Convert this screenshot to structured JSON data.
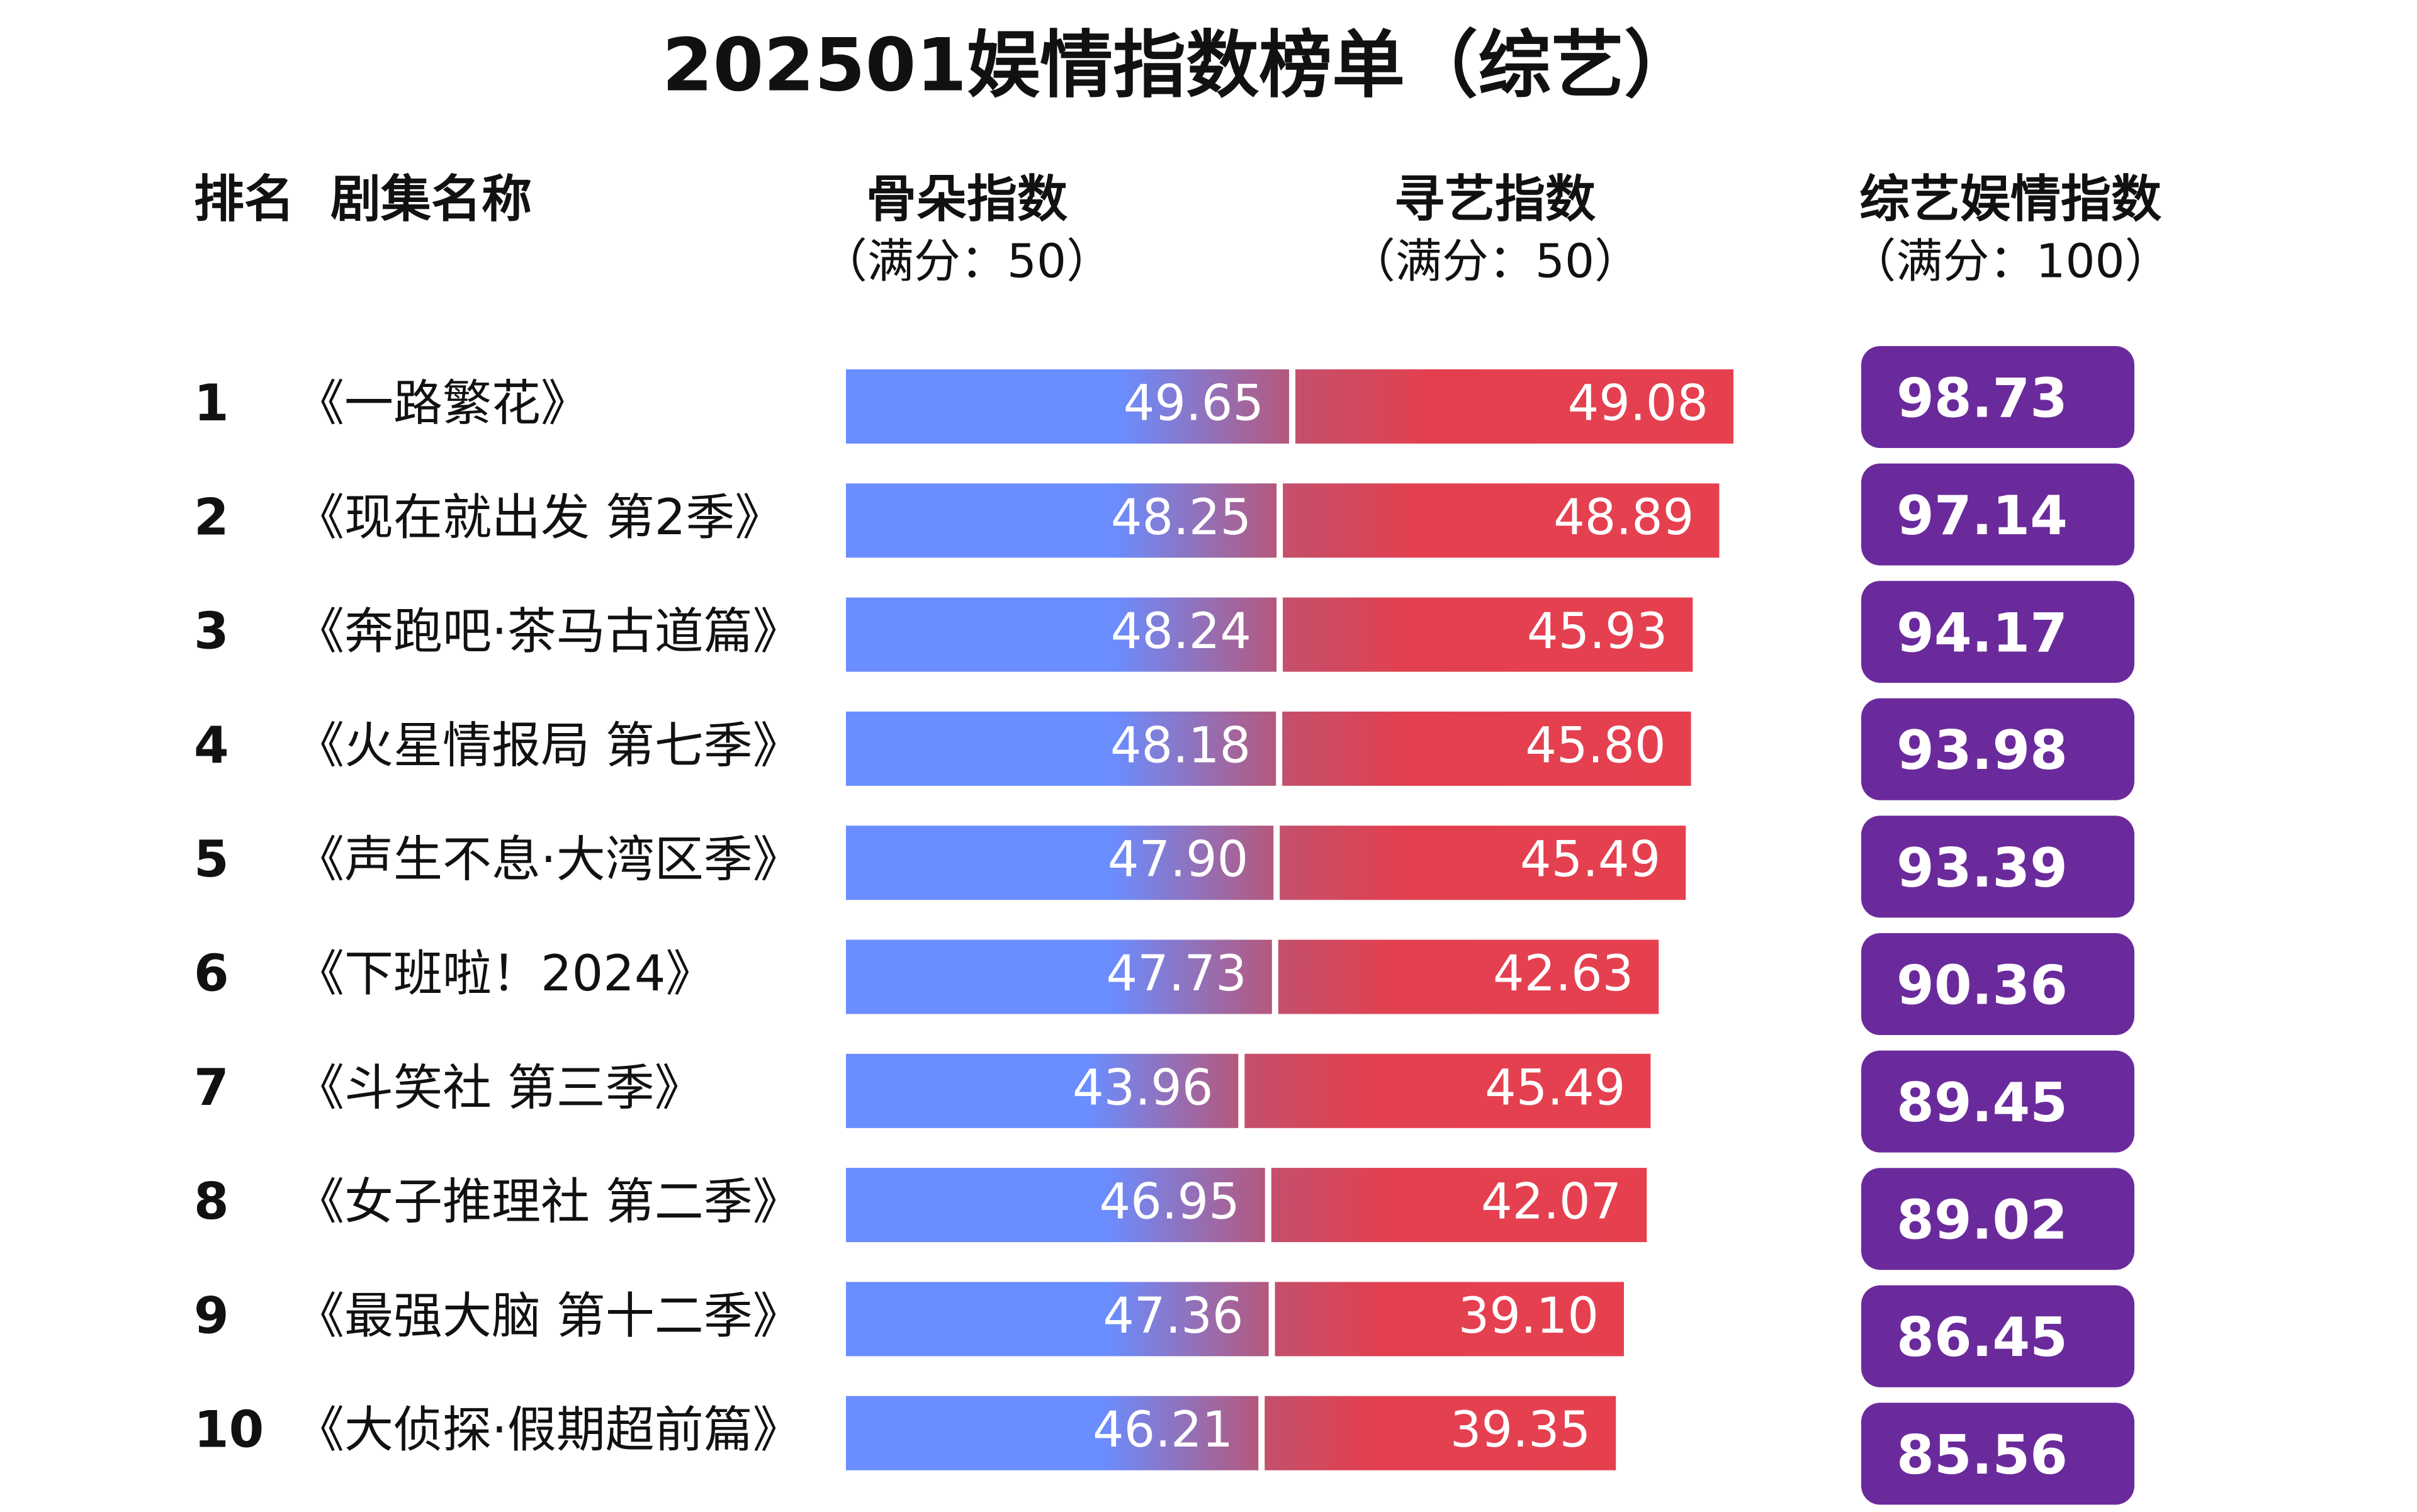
{
  "chart_data": {
    "type": "bar",
    "orientation": "horizontal",
    "stacked": true,
    "title": "202501娱情指数榜单（综艺）",
    "rank_header": "排名",
    "name_header": "剧集名称",
    "ranks": [
      1,
      2,
      3,
      4,
      5,
      6,
      7,
      8,
      9,
      10
    ],
    "categories": [
      "《一路繁花》",
      "《现在就出发 第2季》",
      "《奔跑吧·茶马古道篇》",
      "《火星情报局 第七季》",
      "《声生不息·大湾区季》",
      "《下班啦！2024》",
      "《斗笑社 第三季》",
      "《女子推理社 第二季》",
      "《最强大脑 第十二季》",
      "《大侦探·假期超前篇》"
    ],
    "series": [
      {
        "name": "骨朵指数",
        "note": "（满分：50）",
        "color": "#6a8dff",
        "values": [
          49.65,
          48.25,
          48.24,
          48.18,
          47.9,
          47.73,
          43.96,
          46.95,
          47.36,
          46.21
        ],
        "value_labels": [
          "49.65",
          "48.25",
          "48.24",
          "48.18",
          "47.90",
          "47.73",
          "43.96",
          "46.95",
          "47.36",
          "46.21"
        ]
      },
      {
        "name": "寻艺指数",
        "note": "（满分：50）",
        "color": "#e6404f",
        "values": [
          49.08,
          48.89,
          45.93,
          45.8,
          45.49,
          42.63,
          45.49,
          42.07,
          39.1,
          39.35
        ],
        "value_labels": [
          "49.08",
          "48.89",
          "45.93",
          "45.80",
          "45.49",
          "42.63",
          "45.49",
          "42.07",
          "39.10",
          "39.35"
        ]
      }
    ],
    "total": {
      "name": "综艺娱情指数",
      "note": "（满分：100）",
      "color": "#6b2a9c",
      "values": [
        98.73,
        97.14,
        94.17,
        93.98,
        93.39,
        90.36,
        89.45,
        89.02,
        86.45,
        85.56
      ]
    }
  }
}
